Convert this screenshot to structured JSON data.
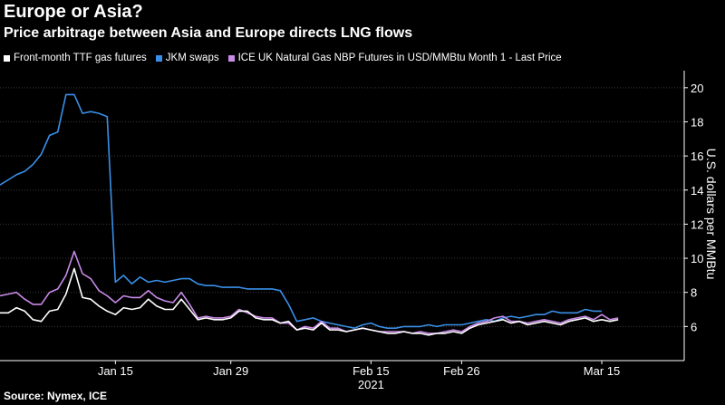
{
  "chart_data": {
    "type": "line",
    "title": "Europe or Asia?",
    "subtitle": "Price arbitrage between Asia and Europe directs LNG flows",
    "ylabel": "U.S. dollars per MMBtu",
    "xlabel": "",
    "source": "Source: Nymex, ICE",
    "ylim": [
      4,
      21
    ],
    "y_ticks": [
      6,
      8,
      10,
      12,
      14,
      16,
      18,
      20
    ],
    "x_range": [
      "2021-01-01",
      "2021-03-25"
    ],
    "x_ticks": [
      {
        "date": "2021-01-15",
        "label": "Jan 15"
      },
      {
        "date": "2021-01-29",
        "label": "Jan 29"
      },
      {
        "date": "2021-02-15",
        "label": "Feb 15"
      },
      {
        "date": "2021-02-26",
        "label": "Feb 26"
      },
      {
        "date": "2021-03-15",
        "label": "Mar 15"
      }
    ],
    "x_year_label": "2021",
    "grid": "horizontal",
    "legend_position": "top-left",
    "series": [
      {
        "name": "Front-month TTF gas futures",
        "color": "#ffffff",
        "points": [
          [
            "2021-01-01",
            6.8
          ],
          [
            "2021-01-02",
            6.8
          ],
          [
            "2021-01-03",
            7.1
          ],
          [
            "2021-01-04",
            6.9
          ],
          [
            "2021-01-05",
            6.4
          ],
          [
            "2021-01-06",
            6.3
          ],
          [
            "2021-01-07",
            6.9
          ],
          [
            "2021-01-08",
            7.0
          ],
          [
            "2021-01-09",
            7.9
          ],
          [
            "2021-01-10",
            9.4
          ],
          [
            "2021-01-11",
            7.7
          ],
          [
            "2021-01-12",
            7.6
          ],
          [
            "2021-01-13",
            7.2
          ],
          [
            "2021-01-14",
            6.9
          ],
          [
            "2021-01-15",
            6.7
          ],
          [
            "2021-01-16",
            7.1
          ],
          [
            "2021-01-17",
            7.0
          ],
          [
            "2021-01-18",
            7.1
          ],
          [
            "2021-01-19",
            7.6
          ],
          [
            "2021-01-20",
            7.2
          ],
          [
            "2021-01-21",
            7.0
          ],
          [
            "2021-01-22",
            7.0
          ],
          [
            "2021-01-23",
            7.6
          ],
          [
            "2021-01-24",
            7.0
          ],
          [
            "2021-01-25",
            6.4
          ],
          [
            "2021-01-26",
            6.5
          ],
          [
            "2021-01-27",
            6.4
          ],
          [
            "2021-01-28",
            6.4
          ],
          [
            "2021-01-29",
            6.5
          ],
          [
            "2021-01-30",
            6.9
          ],
          [
            "2021-01-31",
            6.9
          ],
          [
            "2021-02-01",
            6.5
          ],
          [
            "2021-02-02",
            6.4
          ],
          [
            "2021-02-03",
            6.4
          ],
          [
            "2021-02-04",
            6.2
          ],
          [
            "2021-02-05",
            6.3
          ],
          [
            "2021-02-06",
            5.8
          ],
          [
            "2021-02-07",
            5.9
          ],
          [
            "2021-02-08",
            5.8
          ],
          [
            "2021-02-09",
            6.2
          ],
          [
            "2021-02-10",
            5.8
          ],
          [
            "2021-02-11",
            5.8
          ],
          [
            "2021-02-12",
            5.7
          ],
          [
            "2021-02-13",
            5.8
          ],
          [
            "2021-02-14",
            5.9
          ],
          [
            "2021-02-15",
            5.8
          ],
          [
            "2021-02-16",
            5.7
          ],
          [
            "2021-02-17",
            5.6
          ],
          [
            "2021-02-18",
            5.6
          ],
          [
            "2021-02-19",
            5.7
          ],
          [
            "2021-02-20",
            5.6
          ],
          [
            "2021-02-21",
            5.6
          ],
          [
            "2021-02-22",
            5.5
          ],
          [
            "2021-02-23",
            5.6
          ],
          [
            "2021-02-24",
            5.6
          ],
          [
            "2021-02-25",
            5.7
          ],
          [
            "2021-02-26",
            5.6
          ],
          [
            "2021-02-27",
            5.9
          ],
          [
            "2021-02-28",
            6.1
          ],
          [
            "2021-03-01",
            6.2
          ],
          [
            "2021-03-02",
            6.3
          ],
          [
            "2021-03-03",
            6.4
          ],
          [
            "2021-03-04",
            6.2
          ],
          [
            "2021-03-05",
            6.3
          ],
          [
            "2021-03-06",
            6.1
          ],
          [
            "2021-03-07",
            6.2
          ],
          [
            "2021-03-08",
            6.3
          ],
          [
            "2021-03-09",
            6.2
          ],
          [
            "2021-03-10",
            6.1
          ],
          [
            "2021-03-11",
            6.3
          ],
          [
            "2021-03-12",
            6.4
          ],
          [
            "2021-03-13",
            6.5
          ],
          [
            "2021-03-14",
            6.3
          ],
          [
            "2021-03-15",
            6.4
          ],
          [
            "2021-03-16",
            6.3
          ],
          [
            "2021-03-17",
            6.4
          ]
        ]
      },
      {
        "name": "JKM swaps",
        "color": "#3a8fe8",
        "points": [
          [
            "2021-01-01",
            14.3
          ],
          [
            "2021-01-02",
            14.6
          ],
          [
            "2021-01-03",
            14.9
          ],
          [
            "2021-01-04",
            15.1
          ],
          [
            "2021-01-05",
            15.5
          ],
          [
            "2021-01-06",
            16.1
          ],
          [
            "2021-01-07",
            17.2
          ],
          [
            "2021-01-08",
            17.4
          ],
          [
            "2021-01-09",
            19.6
          ],
          [
            "2021-01-10",
            19.6
          ],
          [
            "2021-01-11",
            18.5
          ],
          [
            "2021-01-12",
            18.6
          ],
          [
            "2021-01-13",
            18.5
          ],
          [
            "2021-01-14",
            18.3
          ],
          [
            "2021-01-15",
            8.6
          ],
          [
            "2021-01-16",
            9.0
          ],
          [
            "2021-01-17",
            8.5
          ],
          [
            "2021-01-18",
            8.9
          ],
          [
            "2021-01-19",
            8.6
          ],
          [
            "2021-01-20",
            8.7
          ],
          [
            "2021-01-21",
            8.6
          ],
          [
            "2021-01-22",
            8.7
          ],
          [
            "2021-01-23",
            8.8
          ],
          [
            "2021-01-24",
            8.8
          ],
          [
            "2021-01-25",
            8.5
          ],
          [
            "2021-01-26",
            8.4
          ],
          [
            "2021-01-27",
            8.4
          ],
          [
            "2021-01-28",
            8.3
          ],
          [
            "2021-01-29",
            8.3
          ],
          [
            "2021-01-30",
            8.3
          ],
          [
            "2021-01-31",
            8.2
          ],
          [
            "2021-02-01",
            8.2
          ],
          [
            "2021-02-02",
            8.2
          ],
          [
            "2021-02-03",
            8.2
          ],
          [
            "2021-02-04",
            8.1
          ],
          [
            "2021-02-05",
            7.3
          ],
          [
            "2021-02-06",
            6.3
          ],
          [
            "2021-02-07",
            6.4
          ],
          [
            "2021-02-08",
            6.5
          ],
          [
            "2021-02-09",
            6.3
          ],
          [
            "2021-02-10",
            6.2
          ],
          [
            "2021-02-11",
            6.1
          ],
          [
            "2021-02-12",
            6.0
          ],
          [
            "2021-02-13",
            5.9
          ],
          [
            "2021-02-14",
            6.1
          ],
          [
            "2021-02-15",
            6.2
          ],
          [
            "2021-02-16",
            6.0
          ],
          [
            "2021-02-17",
            5.9
          ],
          [
            "2021-02-18",
            5.9
          ],
          [
            "2021-02-19",
            6.0
          ],
          [
            "2021-02-20",
            6.0
          ],
          [
            "2021-02-21",
            6.0
          ],
          [
            "2021-02-22",
            6.1
          ],
          [
            "2021-02-23",
            6.0
          ],
          [
            "2021-02-24",
            6.1
          ],
          [
            "2021-02-25",
            6.1
          ],
          [
            "2021-02-26",
            6.1
          ],
          [
            "2021-02-27",
            6.2
          ],
          [
            "2021-02-28",
            6.3
          ],
          [
            "2021-03-01",
            6.4
          ],
          [
            "2021-03-02",
            6.3
          ],
          [
            "2021-03-03",
            6.5
          ],
          [
            "2021-03-04",
            6.6
          ],
          [
            "2021-03-05",
            6.5
          ],
          [
            "2021-03-06",
            6.6
          ],
          [
            "2021-03-07",
            6.7
          ],
          [
            "2021-03-08",
            6.7
          ],
          [
            "2021-03-09",
            6.9
          ],
          [
            "2021-03-10",
            6.8
          ],
          [
            "2021-03-11",
            6.8
          ],
          [
            "2021-03-12",
            6.8
          ],
          [
            "2021-03-13",
            7.0
          ],
          [
            "2021-03-14",
            6.9
          ],
          [
            "2021-03-15",
            6.9
          ]
        ]
      },
      {
        "name": "ICE UK Natural Gas NBP Futures in USD/MMBtu Month 1 - Last Price",
        "color": "#c98ae8",
        "points": [
          [
            "2021-01-01",
            7.8
          ],
          [
            "2021-01-02",
            7.9
          ],
          [
            "2021-01-03",
            8.0
          ],
          [
            "2021-01-04",
            7.6
          ],
          [
            "2021-01-05",
            7.3
          ],
          [
            "2021-01-06",
            7.3
          ],
          [
            "2021-01-07",
            8.0
          ],
          [
            "2021-01-08",
            8.2
          ],
          [
            "2021-01-09",
            9.0
          ],
          [
            "2021-01-10",
            10.4
          ],
          [
            "2021-01-11",
            9.1
          ],
          [
            "2021-01-12",
            8.8
          ],
          [
            "2021-01-13",
            8.1
          ],
          [
            "2021-01-14",
            7.8
          ],
          [
            "2021-01-15",
            7.4
          ],
          [
            "2021-01-16",
            7.8
          ],
          [
            "2021-01-17",
            7.7
          ],
          [
            "2021-01-18",
            7.7
          ],
          [
            "2021-01-19",
            8.1
          ],
          [
            "2021-01-20",
            7.7
          ],
          [
            "2021-01-21",
            7.5
          ],
          [
            "2021-01-22",
            7.4
          ],
          [
            "2021-01-23",
            8.0
          ],
          [
            "2021-01-24",
            7.3
          ],
          [
            "2021-01-25",
            6.5
          ],
          [
            "2021-01-26",
            6.6
          ],
          [
            "2021-01-27",
            6.5
          ],
          [
            "2021-01-28",
            6.5
          ],
          [
            "2021-01-29",
            6.6
          ],
          [
            "2021-01-30",
            7.0
          ],
          [
            "2021-01-31",
            6.8
          ],
          [
            "2021-02-01",
            6.6
          ],
          [
            "2021-02-02",
            6.5
          ],
          [
            "2021-02-03",
            6.5
          ],
          [
            "2021-02-04",
            6.2
          ],
          [
            "2021-02-05",
            6.2
          ],
          [
            "2021-02-06",
            5.8
          ],
          [
            "2021-02-07",
            6.0
          ],
          [
            "2021-02-08",
            5.9
          ],
          [
            "2021-02-09",
            6.3
          ],
          [
            "2021-02-10",
            5.9
          ],
          [
            "2021-02-11",
            5.9
          ],
          [
            "2021-02-12",
            5.7
          ],
          [
            "2021-02-13",
            5.8
          ],
          [
            "2021-02-14",
            5.9
          ],
          [
            "2021-02-15",
            5.8
          ],
          [
            "2021-02-16",
            5.7
          ],
          [
            "2021-02-17",
            5.7
          ],
          [
            "2021-02-18",
            5.7
          ],
          [
            "2021-02-19",
            5.7
          ],
          [
            "2021-02-20",
            5.6
          ],
          [
            "2021-02-21",
            5.7
          ],
          [
            "2021-02-22",
            5.6
          ],
          [
            "2021-02-23",
            5.6
          ],
          [
            "2021-02-24",
            5.7
          ],
          [
            "2021-02-25",
            5.8
          ],
          [
            "2021-02-26",
            5.7
          ],
          [
            "2021-02-27",
            6.0
          ],
          [
            "2021-02-28",
            6.2
          ],
          [
            "2021-03-01",
            6.3
          ],
          [
            "2021-03-02",
            6.5
          ],
          [
            "2021-03-03",
            6.6
          ],
          [
            "2021-03-04",
            6.3
          ],
          [
            "2021-03-05",
            6.3
          ],
          [
            "2021-03-06",
            6.2
          ],
          [
            "2021-03-07",
            6.3
          ],
          [
            "2021-03-08",
            6.4
          ],
          [
            "2021-03-09",
            6.3
          ],
          [
            "2021-03-10",
            6.2
          ],
          [
            "2021-03-11",
            6.4
          ],
          [
            "2021-03-12",
            6.5
          ],
          [
            "2021-03-13",
            6.6
          ],
          [
            "2021-03-14",
            6.4
          ],
          [
            "2021-03-15",
            6.7
          ],
          [
            "2021-03-16",
            6.4
          ],
          [
            "2021-03-17",
            6.5
          ]
        ]
      }
    ]
  }
}
